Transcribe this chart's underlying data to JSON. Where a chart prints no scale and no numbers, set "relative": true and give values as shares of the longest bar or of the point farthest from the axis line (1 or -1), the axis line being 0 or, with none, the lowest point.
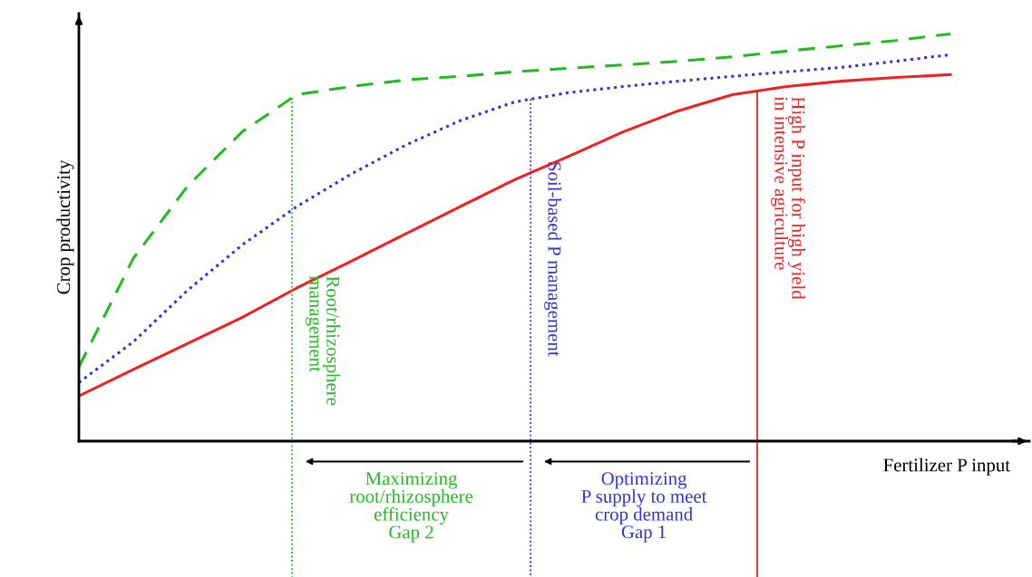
{
  "chart_data": {
    "type": "line",
    "relative": true,
    "ylabel": "Crop productivity",
    "xlabel": "Fertilizer P input",
    "categories": [
      null,
      null,
      null,
      null,
      null,
      null,
      null,
      null,
      null,
      null,
      null,
      null,
      null,
      null,
      null,
      null,
      null
    ],
    "series": [
      {
        "color": "#22bb22",
        "line_style": "dashed",
        "values": [
          0.182,
          0.449,
          0.627,
          0.76,
          0.851,
          0.871,
          0.887,
          0.896,
          0.907,
          0.916,
          0.924,
          0.933,
          0.944,
          0.958,
          0.971,
          0.984,
          1
        ]
      },
      {
        "color": "#3333dd",
        "line_style": "dotted",
        "values": [
          0.144,
          0.244,
          0.371,
          0.482,
          0.576,
          0.656,
          0.727,
          0.787,
          0.833,
          0.856,
          0.871,
          0.884,
          0.896,
          0.907,
          0.918,
          0.933,
          0.949
        ]
      },
      {
        "color": "#ee2222",
        "line_style": "solid",
        "values": [
          0.111,
          0.176,
          0.24,
          0.304,
          0.376,
          0.442,
          0.509,
          0.576,
          0.642,
          0.7,
          0.76,
          0.811,
          0.851,
          0.871,
          0.884,
          0.893,
          0.9
        ]
      }
    ],
    "annotations": [
      "Root/rhizosphere\nmanagement",
      "Soil-based P management",
      "High P input for high yield\nin intensive agriculture",
      "Maximizing\nroot/rhizosphere\nefficiency\nGap 2",
      "Optimizing\nP supply to meet\ncrop demand\nGap 1"
    ]
  }
}
